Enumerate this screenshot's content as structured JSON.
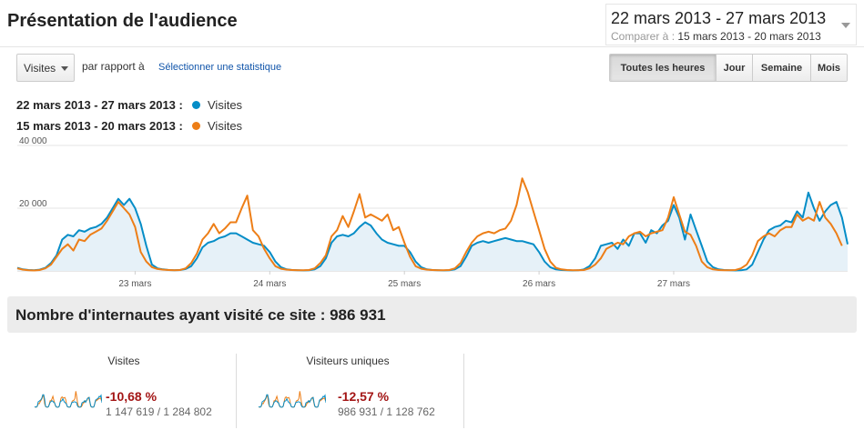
{
  "header": {
    "title": "Présentation de l'audience",
    "date_range": "22 mars 2013 - 27 mars 2013",
    "compare_label": "Comparer à :",
    "compare_range": "15 mars 2013 - 20 mars 2013"
  },
  "controls": {
    "metric_select": "Visites",
    "vs_label": "par rapport à",
    "select_stat_link": "Sélectionner une statistique",
    "granularity": [
      {
        "label": "Toutes les heures",
        "active": true
      },
      {
        "label": "Jour",
        "active": false
      },
      {
        "label": "Semaine",
        "active": false
      },
      {
        "label": "Mois",
        "active": false
      }
    ]
  },
  "legend": [
    {
      "range": "22 mars 2013 - 27 mars 2013 :",
      "series": "Visites",
      "color": "#058dc7"
    },
    {
      "range": "15 mars 2013 - 20 mars 2013 :",
      "series": "Visites",
      "color": "#ed7e17"
    }
  ],
  "chart_data": {
    "type": "area",
    "granularity": "hourly",
    "yticks": [
      "40 000",
      "20 000"
    ],
    "ylim": [
      0,
      40000
    ],
    "xlabels": [
      "23 mars",
      "24 mars",
      "25 mars",
      "26 mars",
      "27 mars"
    ],
    "series": [
      {
        "name": "Visites",
        "color": "#058dc7",
        "fill": true,
        "values": [
          1000,
          500,
          300,
          200,
          400,
          1000,
          2500,
          5000,
          10000,
          11500,
          11000,
          13000,
          12500,
          13500,
          14000,
          15000,
          17000,
          20000,
          23000,
          21000,
          23000,
          20000,
          15000,
          8000,
          2000,
          800,
          500,
          300,
          200,
          300,
          600,
          1500,
          4000,
          7500,
          9000,
          9500,
          10500,
          11000,
          12000,
          12000,
          11000,
          10000,
          9000,
          8500,
          8000,
          6000,
          3000,
          1200,
          500,
          300,
          200,
          150,
          200,
          500,
          1500,
          4000,
          9000,
          11000,
          11500,
          11000,
          12000,
          14000,
          15500,
          14500,
          12000,
          10000,
          9000,
          8500,
          8000,
          8000,
          6000,
          3000,
          1200,
          500,
          300,
          200,
          150,
          200,
          500,
          1500,
          4500,
          8000,
          9000,
          9500,
          9000,
          9500,
          10000,
          10500,
          10000,
          9500,
          9500,
          9000,
          8500,
          6000,
          3000,
          1200,
          500,
          300,
          200,
          150,
          200,
          500,
          1500,
          4000,
          8000,
          8500,
          9000,
          7000,
          10000,
          8000,
          12000,
          12000,
          9000,
          13000,
          12000,
          14500,
          16000,
          21000,
          17000,
          10000,
          18000,
          13000,
          8000,
          3000,
          1200,
          500,
          300,
          200,
          150,
          200,
          500,
          2000,
          6000,
          10000,
          13000,
          14000,
          14500,
          16000,
          15500,
          19000,
          17000,
          25000,
          20000,
          16000,
          19000,
          21000,
          22000,
          17000,
          8500
        ]
      },
      {
        "name": "Visites",
        "color": "#ed7e17",
        "fill": false,
        "values": [
          800,
          400,
          200,
          150,
          300,
          800,
          2000,
          4500,
          7000,
          8500,
          6500,
          10000,
          9500,
          11500,
          12500,
          13500,
          16000,
          19000,
          22000,
          20000,
          18000,
          14000,
          6000,
          3000,
          1200,
          600,
          400,
          300,
          200,
          300,
          800,
          2500,
          5500,
          10000,
          12000,
          15000,
          12000,
          13500,
          15500,
          15500,
          20000,
          24000,
          13000,
          11000,
          7000,
          4000,
          1500,
          700,
          400,
          300,
          200,
          200,
          300,
          800,
          2500,
          5000,
          11000,
          13000,
          17500,
          14000,
          19000,
          24500,
          17000,
          18000,
          17000,
          16000,
          18000,
          13000,
          14000,
          9000,
          4500,
          1500,
          700,
          400,
          300,
          200,
          200,
          300,
          800,
          2500,
          6000,
          9000,
          11000,
          12000,
          12500,
          12000,
          13000,
          13500,
          16000,
          21000,
          29500,
          25000,
          19000,
          13000,
          7000,
          3000,
          1000,
          500,
          300,
          200,
          200,
          300,
          800,
          2000,
          4000,
          7000,
          8000,
          9000,
          8500,
          11000,
          12000,
          12500,
          11000,
          12000,
          12500,
          13000,
          17000,
          23500,
          18000,
          12500,
          11500,
          8000,
          3000,
          1200,
          500,
          300,
          200,
          200,
          300,
          800,
          2000,
          5000,
          9500,
          11000,
          12000,
          11000,
          13000,
          14000,
          14000,
          18000,
          16000,
          17000,
          16000,
          22000,
          17000,
          15000,
          12000,
          8000
        ]
      }
    ]
  },
  "summary": {
    "text": "Nombre d'internautes ayant visité ce site : 986 931"
  },
  "kpis": [
    {
      "title": "Visites",
      "change": "-10,68 %",
      "values": "1 147 619 / 1 284 802"
    },
    {
      "title": "Visiteurs uniques",
      "change": "-12,57 %",
      "values": "986 931 / 1 128 762"
    }
  ]
}
